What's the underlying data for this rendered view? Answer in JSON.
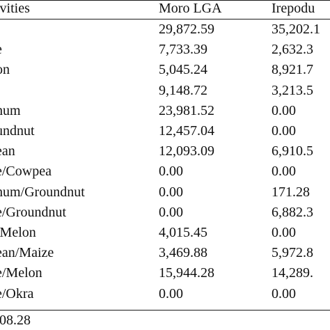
{
  "table": {
    "headers": [
      "ivities",
      "Moro LGA",
      "Irepodu"
    ],
    "rows": [
      [
        "",
        "29,872.59",
        "35,202.1"
      ],
      [
        "e",
        "7,733.39",
        "2,632.3"
      ],
      [
        "on",
        "5,045.24",
        "8,921.7"
      ],
      [
        "",
        "9,148.72",
        "3,213.5"
      ],
      [
        "hum",
        "23,981.52",
        "0.00"
      ],
      [
        "undnut",
        "12,457.04",
        "0.00"
      ],
      [
        "ean",
        "12,093.09",
        "6,910.5"
      ],
      [
        "e/Cowpea",
        "0.00",
        "0.00"
      ],
      [
        "hum/Groundnut",
        "0.00",
        "171.28"
      ],
      [
        "e/Groundnut",
        "0.00",
        "6,882.3"
      ],
      [
        "/Melon",
        "4,015.45",
        "0.00"
      ],
      [
        "ean/Maize",
        "3,469.88",
        "5,972.8"
      ],
      [
        "e/Melon",
        "15,944.28",
        "14,289."
      ],
      [
        "e/Okra",
        "0.00",
        "0.00"
      ]
    ],
    "footer": "08.28"
  }
}
